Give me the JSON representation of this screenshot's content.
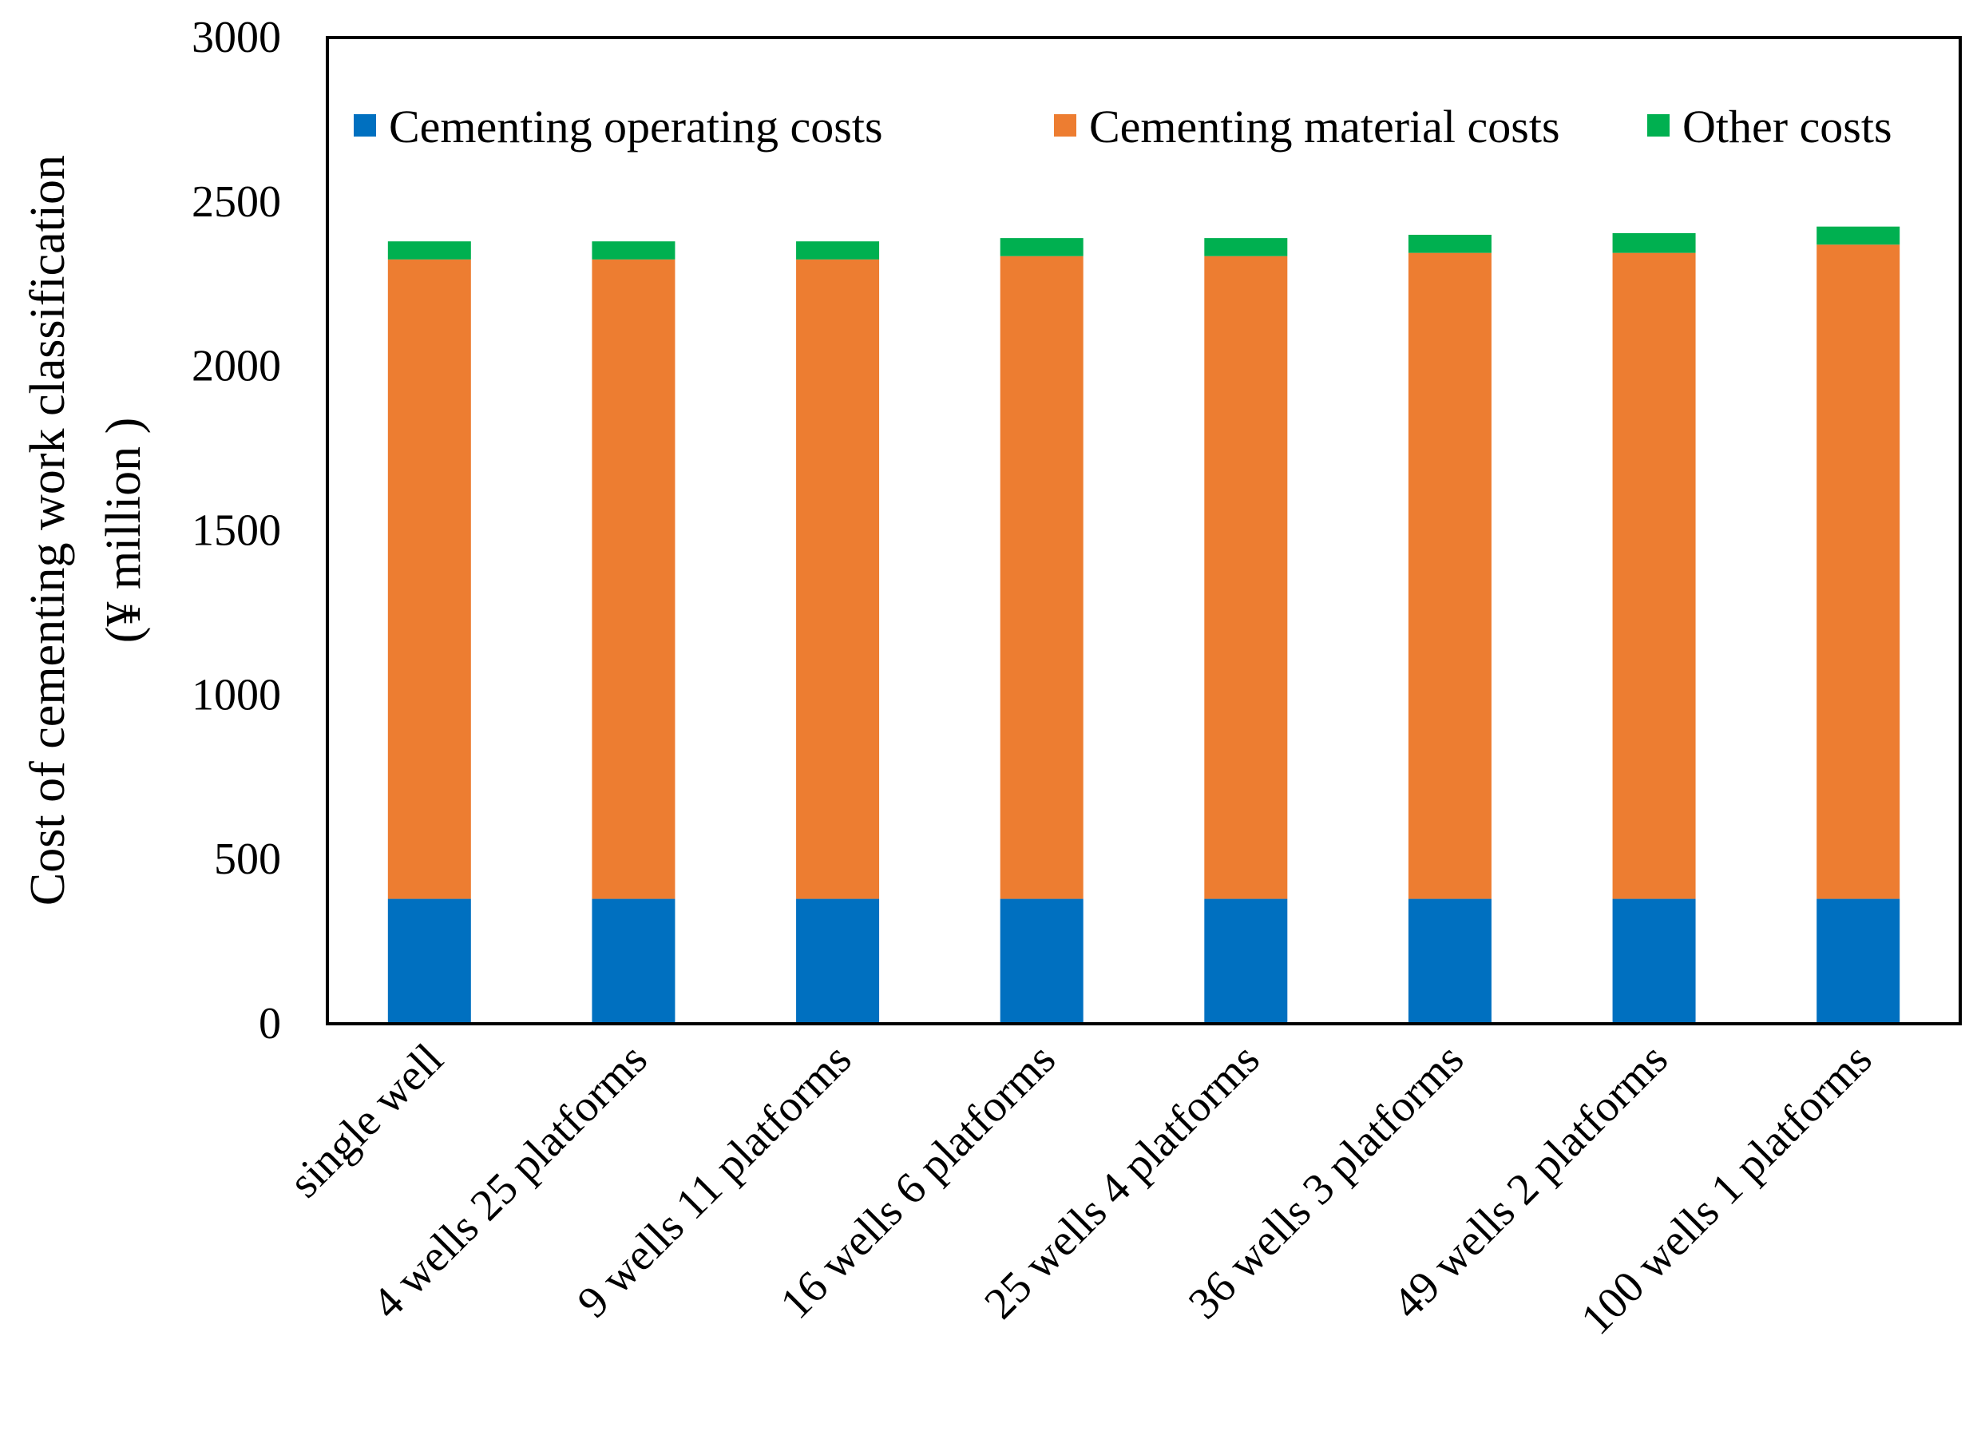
{
  "chart_data": {
    "type": "bar",
    "stacked": true,
    "title": "",
    "xlabel": "",
    "ylabel": "Cost of cementing work classification",
    "ylabel_line2": "(¥ million )",
    "ylim": [
      0,
      3000
    ],
    "yticks": [
      0,
      500,
      1000,
      1500,
      2000,
      2500,
      3000
    ],
    "grid": false,
    "legend_position": "top",
    "categories": [
      "single well",
      "4 wells 25 platforms",
      "9 wells 11 platforms",
      "16 wells 6 platforms",
      "25 wells 4 platforms",
      "36 wells 3 platforms",
      "49 wells 2 platforms",
      "100 wells 1 platforms"
    ],
    "series": [
      {
        "name": "Cementing operating costs",
        "color": "#0070C0",
        "values": [
          380,
          380,
          380,
          380,
          380,
          380,
          380,
          380
        ]
      },
      {
        "name": "Cementing material costs",
        "color": "#ED7D31",
        "values": [
          1945,
          1945,
          1945,
          1955,
          1955,
          1965,
          1965,
          1990
        ]
      },
      {
        "name": "Other costs",
        "color": "#00B050",
        "values": [
          55,
          55,
          55,
          55,
          55,
          55,
          60,
          55
        ]
      }
    ]
  }
}
